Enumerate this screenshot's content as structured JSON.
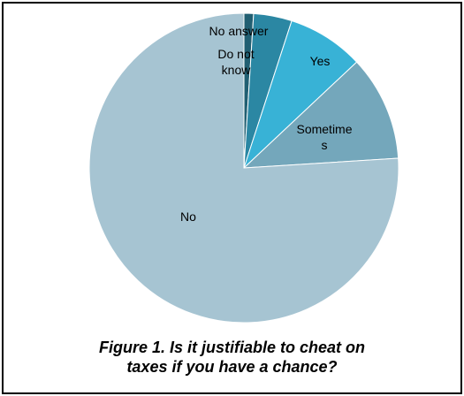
{
  "chart_data": {
    "type": "pie",
    "slices": [
      {
        "label": "No answer",
        "label_lines": [
          "No answer"
        ],
        "value": 1,
        "color": "#215f72"
      },
      {
        "label": "Do not know",
        "label_lines": [
          "Do not",
          "know"
        ],
        "value": 4,
        "color": "#2b87a3"
      },
      {
        "label": "Yes",
        "label_lines": [
          "Yes"
        ],
        "value": 8,
        "color": "#38b2d6"
      },
      {
        "label": "Sometimes",
        "label_lines": [
          "Sometime",
          "s"
        ],
        "value": 11,
        "color": "#74a7bb"
      },
      {
        "label": "No",
        "label_lines": [
          "No"
        ],
        "value": 76,
        "color": "#a6c4d2"
      }
    ],
    "start_angle_deg": 0,
    "direction": "clockwise",
    "legend": "none",
    "title": ""
  },
  "caption": {
    "line1": "Figure 1. Is it justifiable to cheat on",
    "line2": "taxes if you have a chance?"
  }
}
